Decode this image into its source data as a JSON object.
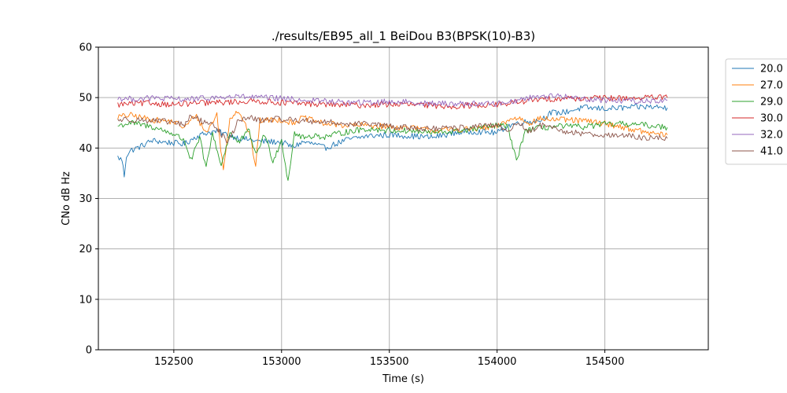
{
  "chart_data": {
    "type": "line",
    "title": "./results/EB95_all_1 BeiDou B3(BPSK(10)-B3)",
    "xlabel": "Time (s)",
    "ylabel": "CNo dB Hz",
    "xlim": [
      152150,
      154980
    ],
    "ylim": [
      0,
      60
    ],
    "xticks": [
      152500,
      153000,
      153500,
      154000,
      154500
    ],
    "yticks": [
      0,
      10,
      20,
      30,
      40,
      50,
      60
    ],
    "grid": true,
    "legend_position": "outside-top-right",
    "series": [
      {
        "name": "20.0",
        "color": "#1f77b4",
        "points": [
          [
            152240,
            38.2
          ],
          [
            152260,
            37.6
          ],
          [
            152270,
            34.5
          ],
          [
            152280,
            38.5
          ],
          [
            152300,
            39.5
          ],
          [
            152340,
            40.2
          ],
          [
            152400,
            41.5
          ],
          [
            152450,
            41.2
          ],
          [
            152500,
            41.0
          ],
          [
            152550,
            40.8
          ],
          [
            152600,
            42.2
          ],
          [
            152650,
            43.0
          ],
          [
            152700,
            43.3
          ],
          [
            152750,
            42.6
          ],
          [
            152800,
            42.0
          ],
          [
            152900,
            41.3
          ],
          [
            153000,
            41.2
          ],
          [
            153050,
            40.2
          ],
          [
            153100,
            41.2
          ],
          [
            153150,
            40.8
          ],
          [
            153200,
            40.0
          ],
          [
            153300,
            41.6
          ],
          [
            153400,
            42.4
          ],
          [
            153500,
            42.6
          ],
          [
            153600,
            42.4
          ],
          [
            153700,
            42.1
          ],
          [
            153800,
            43.0
          ],
          [
            153900,
            43.3
          ],
          [
            154000,
            43.0
          ],
          [
            154050,
            44.4
          ],
          [
            154100,
            45.0
          ],
          [
            154200,
            45.5
          ],
          [
            154250,
            47.0
          ],
          [
            154300,
            47.0
          ],
          [
            154400,
            48.0
          ],
          [
            154500,
            47.8
          ],
          [
            154600,
            48.0
          ],
          [
            154700,
            48.2
          ],
          [
            154790,
            48.0
          ]
        ]
      },
      {
        "name": "27.0",
        "color": "#ff7f0e",
        "points": [
          [
            152240,
            46.2
          ],
          [
            152300,
            46.5
          ],
          [
            152400,
            45.6
          ],
          [
            152500,
            45.2
          ],
          [
            152550,
            44.0
          ],
          [
            152600,
            46.6
          ],
          [
            152650,
            43.0
          ],
          [
            152700,
            46.6
          ],
          [
            152730,
            35.5
          ],
          [
            152760,
            46.0
          ],
          [
            152800,
            47.5
          ],
          [
            152850,
            43.0
          ],
          [
            152880,
            36.5
          ],
          [
            152900,
            45.5
          ],
          [
            153000,
            45.6
          ],
          [
            153050,
            45.0
          ],
          [
            153100,
            46.0
          ],
          [
            153200,
            44.8
          ],
          [
            153300,
            44.5
          ],
          [
            153400,
            44.5
          ],
          [
            153500,
            44.2
          ],
          [
            153600,
            44.0
          ],
          [
            153700,
            43.5
          ],
          [
            153800,
            43.6
          ],
          [
            153900,
            43.8
          ],
          [
            154000,
            44.2
          ],
          [
            154050,
            45.5
          ],
          [
            154100,
            46.0
          ],
          [
            154150,
            45.0
          ],
          [
            154200,
            45.8
          ],
          [
            154300,
            45.6
          ],
          [
            154400,
            45.4
          ],
          [
            154500,
            44.9
          ],
          [
            154600,
            44.0
          ],
          [
            154700,
            43.0
          ],
          [
            154790,
            42.6
          ]
        ]
      },
      {
        "name": "29.0",
        "color": "#2ca02c",
        "points": [
          [
            152240,
            44.4
          ],
          [
            152300,
            45.0
          ],
          [
            152400,
            44.2
          ],
          [
            152500,
            42.8
          ],
          [
            152550,
            41.5
          ],
          [
            152580,
            37.5
          ],
          [
            152620,
            42.0
          ],
          [
            152650,
            36.0
          ],
          [
            152680,
            43.0
          ],
          [
            152720,
            36.5
          ],
          [
            152760,
            43.0
          ],
          [
            152800,
            41.0
          ],
          [
            152850,
            43.5
          ],
          [
            152880,
            38.5
          ],
          [
            152920,
            42.8
          ],
          [
            152960,
            37.5
          ],
          [
            153000,
            41.5
          ],
          [
            153030,
            33.5
          ],
          [
            153060,
            43.0
          ],
          [
            153100,
            42.0
          ],
          [
            153150,
            42.5
          ],
          [
            153200,
            42.2
          ],
          [
            153300,
            43.2
          ],
          [
            153400,
            43.8
          ],
          [
            153500,
            43.5
          ],
          [
            153600,
            43.4
          ],
          [
            153700,
            43.0
          ],
          [
            153800,
            43.3
          ],
          [
            153900,
            43.8
          ],
          [
            154000,
            44.5
          ],
          [
            154050,
            44.2
          ],
          [
            154090,
            37.3
          ],
          [
            154130,
            43.5
          ],
          [
            154200,
            44.0
          ],
          [
            154300,
            44.3
          ],
          [
            154400,
            44.2
          ],
          [
            154500,
            44.7
          ],
          [
            154600,
            44.8
          ],
          [
            154700,
            44.5
          ],
          [
            154790,
            44.1
          ]
        ]
      },
      {
        "name": "30.0",
        "color": "#d62728",
        "points": [
          [
            152240,
            48.6
          ],
          [
            152300,
            48.8
          ],
          [
            152400,
            48.9
          ],
          [
            152500,
            48.6
          ],
          [
            152600,
            48.9
          ],
          [
            152700,
            49.0
          ],
          [
            152800,
            49.2
          ],
          [
            152900,
            49.3
          ],
          [
            153000,
            49.0
          ],
          [
            153100,
            48.8
          ],
          [
            153200,
            48.7
          ],
          [
            153300,
            48.5
          ],
          [
            153400,
            48.5
          ],
          [
            153500,
            48.7
          ],
          [
            153600,
            48.6
          ],
          [
            153700,
            48.4
          ],
          [
            153800,
            48.3
          ],
          [
            153900,
            48.5
          ],
          [
            154000,
            48.6
          ],
          [
            154050,
            48.8
          ],
          [
            154100,
            49.2
          ],
          [
            154200,
            49.6
          ],
          [
            154300,
            49.9
          ],
          [
            154400,
            49.8
          ],
          [
            154500,
            49.9
          ],
          [
            154600,
            49.9
          ],
          [
            154700,
            50.0
          ],
          [
            154790,
            50.0
          ]
        ]
      },
      {
        "name": "32.0",
        "color": "#9467bd",
        "points": [
          [
            152240,
            49.9
          ],
          [
            152300,
            49.7
          ],
          [
            152400,
            49.9
          ],
          [
            152500,
            49.7
          ],
          [
            152600,
            49.7
          ],
          [
            152700,
            50.0
          ],
          [
            152800,
            50.2
          ],
          [
            152900,
            50.0
          ],
          [
            153000,
            49.8
          ],
          [
            153100,
            49.5
          ],
          [
            153200,
            49.3
          ],
          [
            153300,
            49.0
          ],
          [
            153400,
            49.0
          ],
          [
            153500,
            49.2
          ],
          [
            153600,
            49.1
          ],
          [
            153700,
            48.8
          ],
          [
            153800,
            48.8
          ],
          [
            153900,
            48.8
          ],
          [
            154000,
            48.8
          ],
          [
            154100,
            49.5
          ],
          [
            154200,
            50.4
          ],
          [
            154300,
            50.2
          ],
          [
            154400,
            49.8
          ],
          [
            154500,
            49.5
          ],
          [
            154600,
            49.4
          ],
          [
            154700,
            49.3
          ],
          [
            154790,
            49.5
          ]
        ]
      },
      {
        "name": "41.0",
        "color": "#8c564b",
        "points": [
          [
            152240,
            45.6
          ],
          [
            152300,
            45.7
          ],
          [
            152400,
            45.4
          ],
          [
            152500,
            45.1
          ],
          [
            152550,
            44.5
          ],
          [
            152580,
            46.5
          ],
          [
            152620,
            45.5
          ],
          [
            152660,
            45.0
          ],
          [
            152700,
            44.0
          ],
          [
            152750,
            41.0
          ],
          [
            152800,
            45.5
          ],
          [
            152850,
            46.0
          ],
          [
            152900,
            45.5
          ],
          [
            153000,
            45.8
          ],
          [
            153100,
            45.4
          ],
          [
            153200,
            45.2
          ],
          [
            153300,
            44.8
          ],
          [
            153400,
            44.8
          ],
          [
            153500,
            44.3
          ],
          [
            153600,
            44.0
          ],
          [
            153700,
            43.8
          ],
          [
            153800,
            43.9
          ],
          [
            153900,
            44.3
          ],
          [
            154000,
            44.4
          ],
          [
            154050,
            43.5
          ],
          [
            154100,
            45.0
          ],
          [
            154150,
            43.2
          ],
          [
            154200,
            44.5
          ],
          [
            154250,
            44.0
          ],
          [
            154300,
            43.3
          ],
          [
            154400,
            42.9
          ],
          [
            154500,
            42.6
          ],
          [
            154600,
            42.4
          ],
          [
            154700,
            42.0
          ],
          [
            154790,
            41.9
          ]
        ]
      }
    ]
  }
}
